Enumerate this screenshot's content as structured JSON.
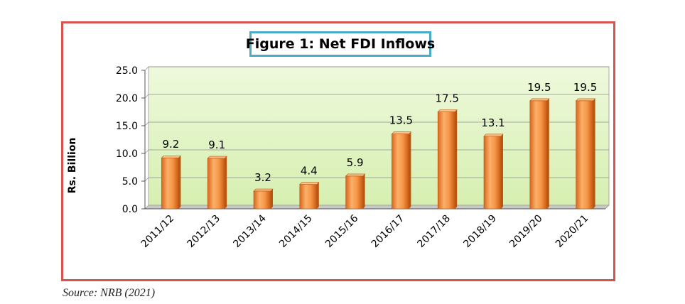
{
  "source_note": "Source: NRB (2021)",
  "chart_data": {
    "type": "bar",
    "title": "Figure 1: Net FDI Inflows",
    "xlabel": "",
    "ylabel": "Rs. Billion",
    "categories": [
      "2011/12",
      "2012/13",
      "2013/14",
      "2014/15",
      "2015/16",
      "2016/17",
      "2017/18",
      "2018/19",
      "2019/20",
      "2020/21"
    ],
    "values": [
      9.2,
      9.1,
      3.2,
      4.4,
      5.9,
      13.5,
      17.5,
      13.1,
      19.5,
      19.5
    ],
    "value_labels": [
      "9.2",
      "9.1",
      "3.2",
      "4.4",
      "5.9",
      "13.5",
      "17.5",
      "13.1",
      "19.5",
      "19.5"
    ],
    "ylim": [
      0,
      25
    ],
    "yticks": [
      "0.0",
      "5.0",
      "10.0",
      "15.0",
      "20.0",
      "25.0"
    ],
    "grid": true,
    "legend": "none",
    "colors": {
      "bar": "#f79646",
      "plot_background": "#e4f5c8",
      "frame_border": "#d9534f",
      "title_border": "#4bacc6"
    }
  }
}
